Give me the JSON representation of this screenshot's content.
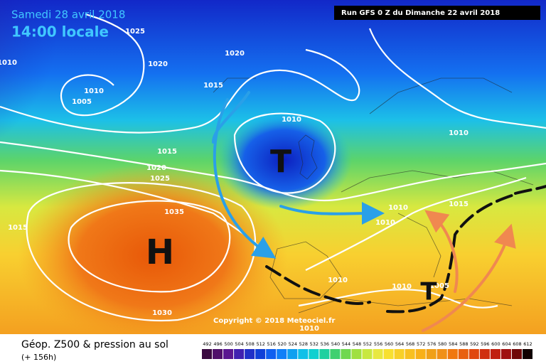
{
  "header": {
    "date": "Samedi 28 avril 2018",
    "time": "14:00 locale",
    "run": "Run GFS 0 Z du Dimanche 22 avril 2018"
  },
  "map": {
    "isobar_labels": [
      1025,
      1010,
      1020,
      1020,
      1015,
      1010,
      1005,
      1010,
      1010,
      1015,
      1020,
      1025,
      1015,
      1035,
      1030,
      1010,
      1015,
      1010,
      1010,
      1010,
      1010,
      1005
    ],
    "pressure_centers": [
      "H",
      "T",
      "T"
    ]
  },
  "copyright": "Copyright © 2018 Meteociel.fr",
  "footer": {
    "title": "Géop. Z500 & pression au sol",
    "lead": "(+ 156h)"
  },
  "scale": {
    "labels": [
      492,
      496,
      500,
      504,
      508,
      512,
      516,
      520,
      524,
      528,
      532,
      536,
      540,
      544,
      548,
      552,
      556,
      560,
      564,
      568,
      572,
      576,
      580,
      584,
      588,
      592,
      596,
      600,
      604,
      608,
      612
    ]
  }
}
